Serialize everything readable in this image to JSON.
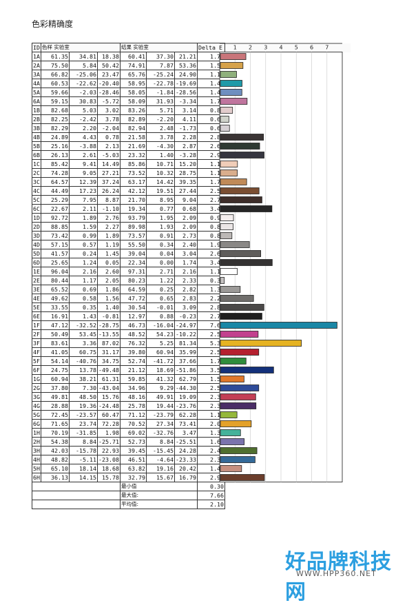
{
  "page": {
    "title": "色彩精确度",
    "watermark_text": "好品牌科技网",
    "watermark_url": "WWW.HPP360.NET"
  },
  "headers": {
    "id": "ID",
    "sample": "色样 实验室",
    "result": "结果 实验室",
    "delta": "Delta E"
  },
  "summary": [
    {
      "label": "最小值",
      "value": "0.30"
    },
    {
      "label": "最大值:",
      "value": "7.66"
    },
    {
      "label": "平均值:",
      "value": "2.10"
    }
  ],
  "chart_data": {
    "type": "bar",
    "orientation": "horizontal",
    "title": "色彩精确度",
    "xlim": [
      0,
      8
    ],
    "xticks": [
      "1",
      "2",
      "3",
      "4",
      "5",
      "6",
      "7"
    ],
    "grid": true,
    "rows": [
      {
        "id": "1A",
        "sample": [
          "61.35",
          "34.81",
          "18.38"
        ],
        "result": [
          "60.41",
          "37.30",
          "21.21"
        ],
        "delta": 1.71,
        "delta_text": "1.71",
        "color": "#c9757a"
      },
      {
        "id": "2A",
        "sample": [
          "75.50",
          "5.84",
          "50.42"
        ],
        "result": [
          "74.91",
          "7.87",
          "53.36"
        ],
        "delta": 1.52,
        "delta_text": "1.52",
        "color": "#d6a24a"
      },
      {
        "id": "3A",
        "sample": [
          "66.82",
          "-25.06",
          "23.47"
        ],
        "result": [
          "65.76",
          "-25.24",
          "24.90"
        ],
        "delta": 1.1,
        "delta_text": "1.10",
        "color": "#8fb07c"
      },
      {
        "id": "4A",
        "sample": [
          "60.53",
          "-22.62",
          "-20.40"
        ],
        "result": [
          "58.95",
          "-22.78",
          "-19.69"
        ],
        "delta": 1.46,
        "delta_text": "1.46",
        "color": "#1f9aa8"
      },
      {
        "id": "5A",
        "sample": [
          "59.66",
          "-2.03",
          "-28.46"
        ],
        "result": [
          "58.05",
          "-1.84",
          "-28.56"
        ],
        "delta": 1.45,
        "delta_text": "1.45",
        "color": "#6f8fc0"
      },
      {
        "id": "6A",
        "sample": [
          "59.15",
          "30.83",
          "-5.72"
        ],
        "result": [
          "58.09",
          "31.93",
          "-3.34"
        ],
        "delta": 1.79,
        "delta_text": "1.79",
        "color": "#c0759e"
      },
      {
        "id": "1B",
        "sample": [
          "82.68",
          "5.03",
          "3.02"
        ],
        "result": [
          "83.26",
          "5.71",
          "3.14"
        ],
        "delta": 0.84,
        "delta_text": "0.84",
        "color": "#e2cccc"
      },
      {
        "id": "2B",
        "sample": [
          "82.25",
          "-2.42",
          "3.78"
        ],
        "result": [
          "82.89",
          "-2.20",
          "4.11"
        ],
        "delta": 0.6,
        "delta_text": "0.60",
        "color": "#d0d3cb"
      },
      {
        "id": "3B",
        "sample": [
          "82.29",
          "2.20",
          "-2.04"
        ],
        "result": [
          "82.94",
          "2.48",
          "-1.73"
        ],
        "delta": 0.64,
        "delta_text": "0.64",
        "color": "#d6d0d4"
      },
      {
        "id": "4B",
        "sample": [
          "24.89",
          "4.43",
          "0.78"
        ],
        "result": [
          "21.58",
          "3.78",
          "2.28"
        ],
        "delta": 2.86,
        "delta_text": "2.86",
        "color": "#3a3434"
      },
      {
        "id": "5B",
        "sample": [
          "25.16",
          "-3.88",
          "2.13"
        ],
        "result": [
          "21.69",
          "-4.30",
          "2.87"
        ],
        "delta": 2.61,
        "delta_text": "2.61",
        "color": "#2e3a33"
      },
      {
        "id": "6B",
        "sample": [
          "26.13",
          "2.61",
          "-5.03"
        ],
        "result": [
          "23.32",
          "1.40",
          "-3.28"
        ],
        "delta": 2.9,
        "delta_text": "2.90",
        "color": "#35353f"
      },
      {
        "id": "1C",
        "sample": [
          "85.42",
          "9.41",
          "14.49"
        ],
        "result": [
          "85.86",
          "10.71",
          "15.20"
        ],
        "delta": 1.16,
        "delta_text": "1.16",
        "color": "#f0cdb8"
      },
      {
        "id": "2C",
        "sample": [
          "74.28",
          "9.05",
          "27.21"
        ],
        "result": [
          "73.52",
          "10.32",
          "28.75"
        ],
        "delta": 1.15,
        "delta_text": "1.15",
        "color": "#d9ae8d"
      },
      {
        "id": "3C",
        "sample": [
          "64.57",
          "12.39",
          "37.24"
        ],
        "result": [
          "63.17",
          "14.42",
          "39.35"
        ],
        "delta": 1.76,
        "delta_text": "1.76",
        "color": "#c08a58"
      },
      {
        "id": "4C",
        "sample": [
          "44.49",
          "17.23",
          "26.24"
        ],
        "result": [
          "42.12",
          "19.51",
          "27.44"
        ],
        "delta": 2.57,
        "delta_text": "2.57",
        "color": "#7a4e32"
      },
      {
        "id": "5C",
        "sample": [
          "25.29",
          "7.95",
          "8.87"
        ],
        "result": [
          "21.70",
          "8.95",
          "9.04"
        ],
        "delta": 2.76,
        "delta_text": "2.76",
        "color": "#3e2e2a"
      },
      {
        "id": "6C",
        "sample": [
          "22.67",
          "2.11",
          "-1.10"
        ],
        "result": [
          "19.34",
          "0.77",
          "0.68"
        ],
        "delta": 3.41,
        "delta_text": "3.41",
        "color": "#262626"
      },
      {
        "id": "1D",
        "sample": [
          "92.72",
          "1.89",
          "2.76"
        ],
        "result": [
          "93.79",
          "1.95",
          "2.09"
        ],
        "delta": 0.9,
        "delta_text": "0.90",
        "color": "#f4eeee"
      },
      {
        "id": "2D",
        "sample": [
          "88.85",
          "1.59",
          "2.27"
        ],
        "result": [
          "89.98",
          "1.93",
          "2.09"
        ],
        "delta": 0.88,
        "delta_text": "0.88",
        "color": "#ebe6e6"
      },
      {
        "id": "3D",
        "sample": [
          "73.42",
          "0.99",
          "1.89"
        ],
        "result": [
          "73.57",
          "0.91",
          "2.73"
        ],
        "delta": 0.8,
        "delta_text": "0.80",
        "color": "#bcb8b6"
      },
      {
        "id": "4D",
        "sample": [
          "57.15",
          "0.57",
          "1.19"
        ],
        "result": [
          "55.50",
          "0.34",
          "2.40"
        ],
        "delta": 1.94,
        "delta_text": "1.94",
        "color": "#8a8886"
      },
      {
        "id": "5D",
        "sample": [
          "41.57",
          "0.24",
          "1.45"
        ],
        "result": [
          "39.04",
          "0.04",
          "3.04"
        ],
        "delta": 2.68,
        "delta_text": "2.68",
        "color": "#5f5d5b"
      },
      {
        "id": "6D",
        "sample": [
          "25.65",
          "1.24",
          "0.05"
        ],
        "result": [
          "22.34",
          "0.00",
          "1.74"
        ],
        "delta": 3.43,
        "delta_text": "3.43",
        "color": "#343232"
      },
      {
        "id": "1E",
        "sample": [
          "96.04",
          "2.16",
          "2.60"
        ],
        "result": [
          "97.31",
          "2.71",
          "2.16"
        ],
        "delta": 1.15,
        "delta_text": "1.15",
        "color": "#ffffff"
      },
      {
        "id": "2E",
        "sample": [
          "80.44",
          "1.17",
          "2.05"
        ],
        "result": [
          "80.23",
          "1.22",
          "2.33"
        ],
        "delta": 0.3,
        "delta_text": "0.30",
        "color": "#c6c3c2"
      },
      {
        "id": "3E",
        "sample": [
          "65.52",
          "0.69",
          "1.86"
        ],
        "result": [
          "64.59",
          "0.25",
          "2.82"
        ],
        "delta": 1.34,
        "delta_text": "1.34",
        "color": "#9c9a98"
      },
      {
        "id": "4E",
        "sample": [
          "49.62",
          "0.58",
          "1.56"
        ],
        "result": [
          "47.72",
          "0.65",
          "2.83"
        ],
        "delta": 2.21,
        "delta_text": "2.21",
        "color": "#706e6c"
      },
      {
        "id": "5E",
        "sample": [
          "33.55",
          "0.35",
          "1.40"
        ],
        "result": [
          "30.54",
          "-0.01",
          "3.09"
        ],
        "delta": 2.89,
        "delta_text": "2.89",
        "color": "#4a4847"
      },
      {
        "id": "6E",
        "sample": [
          "16.91",
          "1.43",
          "-0.81"
        ],
        "result": [
          "12.97",
          "0.88",
          "-0.23"
        ],
        "delta": 2.76,
        "delta_text": "2.76",
        "color": "#1e1e1e"
      },
      {
        "id": "1F",
        "sample": [
          "47.12",
          "-32.52",
          "-28.75"
        ],
        "result": [
          "46.73",
          "-16.04",
          "-24.97"
        ],
        "delta": 7.66,
        "delta_text": "7.66",
        "color": "#1a87a6"
      },
      {
        "id": "2F",
        "sample": [
          "50.49",
          "53.45",
          "-13.55"
        ],
        "result": [
          "48.52",
          "54.23",
          "-10.22"
        ],
        "delta": 2.51,
        "delta_text": "2.51",
        "color": "#c2418e"
      },
      {
        "id": "3F",
        "sample": [
          "83.61",
          "3.36",
          "87.02"
        ],
        "result": [
          "76.32",
          "5.25",
          "81.34"
        ],
        "delta": 5.33,
        "delta_text": "5.33",
        "color": "#e6b322"
      },
      {
        "id": "4F",
        "sample": [
          "41.05",
          "60.75",
          "31.17"
        ],
        "result": [
          "39.80",
          "60.94",
          "35.99"
        ],
        "delta": 2.55,
        "delta_text": "2.55",
        "color": "#b5202f"
      },
      {
        "id": "5F",
        "sample": [
          "54.14",
          "-40.76",
          "34.75"
        ],
        "result": [
          "52.74",
          "-41.72",
          "37.66"
        ],
        "delta": 1.72,
        "delta_text": "1.72",
        "color": "#2f8d3c"
      },
      {
        "id": "6F",
        "sample": [
          "24.75",
          "13.78",
          "-49.48"
        ],
        "result": [
          "21.12",
          "18.69",
          "-51.86"
        ],
        "delta": 3.52,
        "delta_text": "3.52",
        "color": "#13307a"
      },
      {
        "id": "1G",
        "sample": [
          "60.94",
          "38.21",
          "61.31"
        ],
        "result": [
          "59.85",
          "41.32",
          "62.79"
        ],
        "delta": 1.59,
        "delta_text": "1.59",
        "color": "#e0782a"
      },
      {
        "id": "2G",
        "sample": [
          "37.80",
          "7.30",
          "-43.04"
        ],
        "result": [
          "34.96",
          "9.29",
          "-44.30"
        ],
        "delta": 2.55,
        "delta_text": "2.55",
        "color": "#2e4b99"
      },
      {
        "id": "3G",
        "sample": [
          "49.81",
          "48.50",
          "15.76"
        ],
        "result": [
          "48.16",
          "49.91",
          "19.09"
        ],
        "delta": 2.35,
        "delta_text": "2.35",
        "color": "#c23f55"
      },
      {
        "id": "4G",
        "sample": [
          "28.88",
          "19.36",
          "-24.48"
        ],
        "result": [
          "25.78",
          "19.44",
          "-23.76"
        ],
        "delta": 2.37,
        "delta_text": "2.37",
        "color": "#4a2d66"
      },
      {
        "id": "5G",
        "sample": [
          "72.45",
          "-23.57",
          "60.47"
        ],
        "result": [
          "71.12",
          "-23.79",
          "62.28"
        ],
        "delta": 1.13,
        "delta_text": "1.13",
        "color": "#95b83b"
      },
      {
        "id": "6G",
        "sample": [
          "71.65",
          "23.74",
          "72.28"
        ],
        "result": [
          "70.52",
          "27.34",
          "73.41"
        ],
        "delta": 2.06,
        "delta_text": "2.06",
        "color": "#e3a12a"
      },
      {
        "id": "1H",
        "sample": [
          "70.19",
          "-31.85",
          "1.98"
        ],
        "result": [
          "69.02",
          "-32.76",
          "3.47"
        ],
        "delta": 1.36,
        "delta_text": "1.36",
        "color": "#45b29a"
      },
      {
        "id": "2H",
        "sample": [
          "54.38",
          "8.84",
          "-25.71"
        ],
        "result": [
          "52.73",
          "8.84",
          "-25.51"
        ],
        "delta": 1.6,
        "delta_text": "1.60",
        "color": "#7b73ad"
      },
      {
        "id": "3H",
        "sample": [
          "42.03",
          "-15.78",
          "22.93"
        ],
        "result": [
          "39.45",
          "-15.45",
          "24.28"
        ],
        "delta": 2.43,
        "delta_text": "2.43",
        "color": "#4f6f2f"
      },
      {
        "id": "4H",
        "sample": [
          "48.82",
          "-5.11",
          "-23.08"
        ],
        "result": [
          "46.51",
          "-4.64",
          "-23.33"
        ],
        "delta": 2.31,
        "delta_text": "2.31",
        "color": "#346a99"
      },
      {
        "id": "5H",
        "sample": [
          "65.10",
          "18.14",
          "18.68"
        ],
        "result": [
          "63.82",
          "19.16",
          "20.42"
        ],
        "delta": 1.43,
        "delta_text": "1.43",
        "color": "#c69080"
      },
      {
        "id": "6H",
        "sample": [
          "36.13",
          "14.15",
          "15.78"
        ],
        "result": [
          "32.79",
          "15.67",
          "16.79"
        ],
        "delta": 2.92,
        "delta_text": "2.92",
        "color": "#6b3e2c"
      }
    ]
  }
}
